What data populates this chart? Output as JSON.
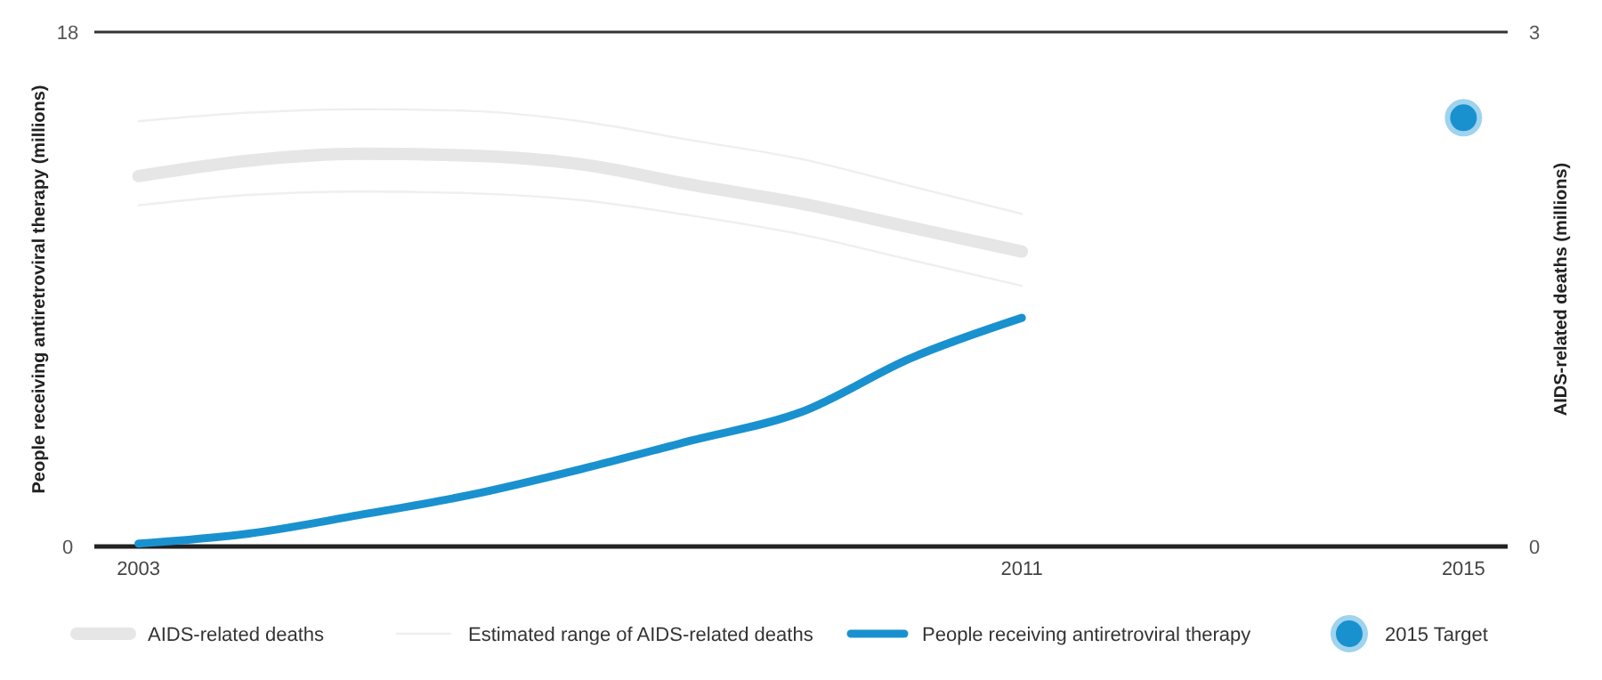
{
  "chart_data": {
    "type": "line",
    "xlabel": null,
    "ylabel": "People receiving antiretroviral  therapy (millions)",
    "y2label": "AIDS-related deaths (millions)",
    "xlim": [
      2002.6,
      2015.4
    ],
    "xticks": [
      2003,
      2011,
      2015
    ],
    "ylim": [
      0,
      18
    ],
    "yticks": [
      0,
      18
    ],
    "y2lim": [
      0,
      3
    ],
    "y2ticks": [
      0,
      3
    ],
    "legend": "bottom",
    "grid": false,
    "series": [
      {
        "name": "AIDS-related deaths",
        "color": "#e6e6e6",
        "axis": "y2",
        "x": [
          2003,
          2004,
          2005,
          2006,
          2007,
          2008,
          2009,
          2010,
          2011
        ],
        "values": [
          2.16,
          2.25,
          2.29,
          2.28,
          2.23,
          2.11,
          2.0,
          1.86,
          1.72
        ]
      },
      {
        "name": "Estimated range of AIDS-related deaths",
        "color": "#efefef",
        "axis": "y2",
        "x": [
          2003,
          2004,
          2005,
          2006,
          2007,
          2008,
          2009,
          2010,
          2011
        ],
        "values": [
          2.48,
          2.53,
          2.55,
          2.54,
          2.48,
          2.37,
          2.26,
          2.1,
          1.94
        ]
      },
      {
        "color": "#efefef",
        "axis": "y2",
        "x": [
          2003,
          2004,
          2005,
          2006,
          2007,
          2008,
          2009,
          2010,
          2011
        ],
        "values": [
          1.99,
          2.05,
          2.07,
          2.06,
          2.02,
          1.93,
          1.82,
          1.67,
          1.52
        ]
      },
      {
        "name": "People receiving antiretroviral therapy",
        "color": "#1a91cf",
        "x": [
          2003,
          2004,
          2005,
          2006,
          2007,
          2008,
          2009,
          2010,
          2011
        ],
        "values": [
          0.1,
          0.45,
          1.1,
          1.8,
          2.7,
          3.7,
          4.7,
          6.6,
          8.0
        ]
      },
      {
        "name": "2015 Target",
        "type": "scatter",
        "marker": "circle",
        "color": "#1a91cf",
        "x": [
          2015
        ],
        "values": [
          15
        ]
      }
    ]
  }
}
